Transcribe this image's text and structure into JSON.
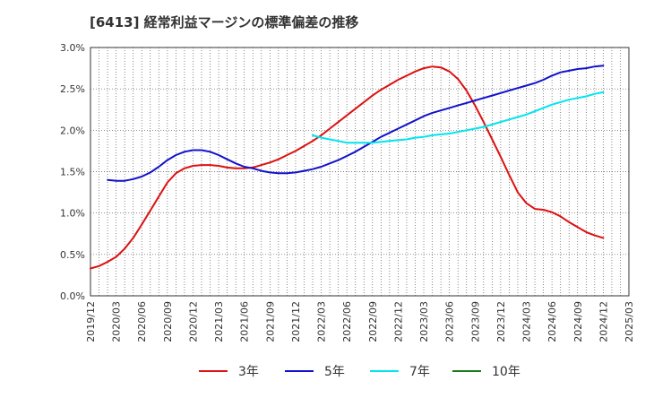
{
  "chart_data": {
    "type": "line",
    "title": "[6413]  経常利益マージンの標準偏差の推移",
    "xlabel": "",
    "ylabel": "",
    "x_ticks": [
      "2019/12",
      "2020/03",
      "2020/06",
      "2020/09",
      "2020/12",
      "2021/03",
      "2021/06",
      "2021/09",
      "2021/12",
      "2022/03",
      "2022/06",
      "2022/09",
      "2022/12",
      "2023/03",
      "2023/06",
      "2023/09",
      "2023/12",
      "2024/03",
      "2024/06",
      "2024/09",
      "2024/12",
      "2025/03"
    ],
    "y_ticks": [
      "0.0%",
      "0.5%",
      "1.0%",
      "1.5%",
      "2.0%",
      "2.5%",
      "3.0%"
    ],
    "ylim": [
      0,
      3.0
    ],
    "x_range": [
      "2019/12",
      "2025/03"
    ],
    "grid": true,
    "legend_position": "bottom",
    "series": [
      {
        "name": "3年",
        "color": "#dd1111",
        "points": [
          [
            "2019/12",
            0.33
          ],
          [
            "2020/01",
            0.36
          ],
          [
            "2020/02",
            0.41
          ],
          [
            "2020/03",
            0.47
          ],
          [
            "2020/04",
            0.57
          ],
          [
            "2020/05",
            0.7
          ],
          [
            "2020/06",
            0.86
          ],
          [
            "2020/07",
            1.03
          ],
          [
            "2020/08",
            1.2
          ],
          [
            "2020/09",
            1.37
          ],
          [
            "2020/10",
            1.48
          ],
          [
            "2020/11",
            1.54
          ],
          [
            "2020/12",
            1.57
          ],
          [
            "2021/01",
            1.58
          ],
          [
            "2021/02",
            1.58
          ],
          [
            "2021/03",
            1.57
          ],
          [
            "2021/04",
            1.55
          ],
          [
            "2021/05",
            1.54
          ],
          [
            "2021/06",
            1.54
          ],
          [
            "2021/07",
            1.55
          ],
          [
            "2021/08",
            1.58
          ],
          [
            "2021/09",
            1.61
          ],
          [
            "2021/10",
            1.65
          ],
          [
            "2021/11",
            1.7
          ],
          [
            "2021/12",
            1.75
          ],
          [
            "2022/01",
            1.81
          ],
          [
            "2022/02",
            1.87
          ],
          [
            "2022/03",
            1.94
          ],
          [
            "2022/04",
            2.02
          ],
          [
            "2022/05",
            2.1
          ],
          [
            "2022/06",
            2.18
          ],
          [
            "2022/07",
            2.26
          ],
          [
            "2022/08",
            2.34
          ],
          [
            "2022/09",
            2.42
          ],
          [
            "2022/10",
            2.49
          ],
          [
            "2022/11",
            2.55
          ],
          [
            "2022/12",
            2.61
          ],
          [
            "2023/01",
            2.66
          ],
          [
            "2023/02",
            2.71
          ],
          [
            "2023/03",
            2.75
          ],
          [
            "2023/04",
            2.77
          ],
          [
            "2023/05",
            2.76
          ],
          [
            "2023/06",
            2.71
          ],
          [
            "2023/07",
            2.62
          ],
          [
            "2023/08",
            2.48
          ],
          [
            "2023/09",
            2.3
          ],
          [
            "2023/10",
            2.1
          ],
          [
            "2023/11",
            1.89
          ],
          [
            "2023/12",
            1.68
          ],
          [
            "2024/01",
            1.46
          ],
          [
            "2024/02",
            1.25
          ],
          [
            "2024/03",
            1.12
          ],
          [
            "2024/04",
            1.05
          ],
          [
            "2024/05",
            1.04
          ],
          [
            "2024/06",
            1.01
          ],
          [
            "2024/07",
            0.96
          ],
          [
            "2024/08",
            0.89
          ],
          [
            "2024/09",
            0.83
          ],
          [
            "2024/10",
            0.77
          ],
          [
            "2024/11",
            0.73
          ],
          [
            "2024/12",
            0.7
          ]
        ]
      },
      {
        "name": "5年",
        "color": "#1111cc",
        "points": [
          [
            "2020/02",
            1.4
          ],
          [
            "2020/03",
            1.39
          ],
          [
            "2020/04",
            1.39
          ],
          [
            "2020/05",
            1.41
          ],
          [
            "2020/06",
            1.44
          ],
          [
            "2020/07",
            1.49
          ],
          [
            "2020/08",
            1.56
          ],
          [
            "2020/09",
            1.64
          ],
          [
            "2020/10",
            1.7
          ],
          [
            "2020/11",
            1.74
          ],
          [
            "2020/12",
            1.76
          ],
          [
            "2021/01",
            1.76
          ],
          [
            "2021/02",
            1.74
          ],
          [
            "2021/03",
            1.7
          ],
          [
            "2021/04",
            1.65
          ],
          [
            "2021/05",
            1.6
          ],
          [
            "2021/06",
            1.56
          ],
          [
            "2021/07",
            1.54
          ],
          [
            "2021/08",
            1.51
          ],
          [
            "2021/09",
            1.49
          ],
          [
            "2021/10",
            1.48
          ],
          [
            "2021/11",
            1.48
          ],
          [
            "2021/12",
            1.49
          ],
          [
            "2022/01",
            1.51
          ],
          [
            "2022/02",
            1.53
          ],
          [
            "2022/03",
            1.56
          ],
          [
            "2022/04",
            1.6
          ],
          [
            "2022/05",
            1.64
          ],
          [
            "2022/06",
            1.69
          ],
          [
            "2022/07",
            1.74
          ],
          [
            "2022/08",
            1.8
          ],
          [
            "2022/09",
            1.86
          ],
          [
            "2022/10",
            1.92
          ],
          [
            "2022/11",
            1.97
          ],
          [
            "2022/12",
            2.02
          ],
          [
            "2023/01",
            2.07
          ],
          [
            "2023/02",
            2.12
          ],
          [
            "2023/03",
            2.17
          ],
          [
            "2023/04",
            2.21
          ],
          [
            "2023/05",
            2.24
          ],
          [
            "2023/06",
            2.27
          ],
          [
            "2023/07",
            2.3
          ],
          [
            "2023/08",
            2.33
          ],
          [
            "2023/09",
            2.36
          ],
          [
            "2023/10",
            2.39
          ],
          [
            "2023/11",
            2.42
          ],
          [
            "2023/12",
            2.45
          ],
          [
            "2024/01",
            2.48
          ],
          [
            "2024/02",
            2.51
          ],
          [
            "2024/03",
            2.54
          ],
          [
            "2024/04",
            2.57
          ],
          [
            "2024/05",
            2.61
          ],
          [
            "2024/06",
            2.66
          ],
          [
            "2024/07",
            2.7
          ],
          [
            "2024/08",
            2.72
          ],
          [
            "2024/09",
            2.74
          ],
          [
            "2024/10",
            2.75
          ],
          [
            "2024/11",
            2.77
          ],
          [
            "2024/12",
            2.78
          ]
        ]
      },
      {
        "name": "7年",
        "color": "#00e5ee",
        "points": [
          [
            "2022/02",
            1.94
          ],
          [
            "2022/03",
            1.91
          ],
          [
            "2022/04",
            1.89
          ],
          [
            "2022/05",
            1.87
          ],
          [
            "2022/06",
            1.85
          ],
          [
            "2022/07",
            1.85
          ],
          [
            "2022/08",
            1.85
          ],
          [
            "2022/09",
            1.85
          ],
          [
            "2022/10",
            1.86
          ],
          [
            "2022/11",
            1.87
          ],
          [
            "2022/12",
            1.88
          ],
          [
            "2023/01",
            1.89
          ],
          [
            "2023/02",
            1.91
          ],
          [
            "2023/03",
            1.92
          ],
          [
            "2023/04",
            1.94
          ],
          [
            "2023/05",
            1.95
          ],
          [
            "2023/06",
            1.96
          ],
          [
            "2023/07",
            1.98
          ],
          [
            "2023/08",
            2.0
          ],
          [
            "2023/09",
            2.02
          ],
          [
            "2023/10",
            2.04
          ],
          [
            "2023/11",
            2.07
          ],
          [
            "2023/12",
            2.1
          ],
          [
            "2024/01",
            2.13
          ],
          [
            "2024/02",
            2.16
          ],
          [
            "2024/03",
            2.19
          ],
          [
            "2024/04",
            2.23
          ],
          [
            "2024/05",
            2.27
          ],
          [
            "2024/06",
            2.31
          ],
          [
            "2024/07",
            2.34
          ],
          [
            "2024/08",
            2.37
          ],
          [
            "2024/09",
            2.39
          ],
          [
            "2024/10",
            2.41
          ],
          [
            "2024/11",
            2.44
          ],
          [
            "2024/12",
            2.46
          ]
        ]
      },
      {
        "name": "10年",
        "color": "#1a7a1a",
        "points": []
      }
    ]
  }
}
